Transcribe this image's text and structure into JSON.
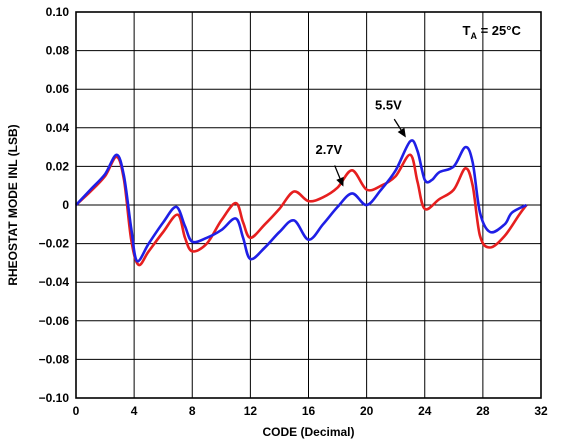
{
  "chart_data": {
    "type": "line",
    "xlabel": "CODE (Decimal)",
    "ylabel": "RHEOSTAT MODE INL (LSB)",
    "xlim": [
      0,
      32
    ],
    "ylim": [
      -0.1,
      0.1
    ],
    "x_ticks": [
      "0",
      "4",
      "8",
      "12",
      "16",
      "20",
      "24",
      "28",
      "32"
    ],
    "y_ticks": [
      "0.10",
      "0.08",
      "0.06",
      "0.04",
      "0.02",
      "0",
      "−0.02",
      "−0.04",
      "−0.06",
      "−0.08",
      "−0.10"
    ],
    "grid": true,
    "annotation": {
      "prefix": "T",
      "subscript": "A",
      "suffix": " = 25°C"
    },
    "series": [
      {
        "name": "5.5V",
        "color": "#1f1fe6",
        "x": [
          0,
          1,
          2,
          2.8,
          3.3,
          3.8,
          4.2,
          5,
          6,
          6.9,
          7.5,
          8,
          9,
          10,
          11,
          11.5,
          12,
          13,
          14,
          15,
          16,
          17,
          18,
          19,
          20,
          21,
          22,
          23,
          23.5,
          24,
          24.5,
          25,
          26,
          26.8,
          27.3,
          27.8,
          28.5,
          29.5,
          30,
          31
        ],
        "y": [
          0.0,
          0.008,
          0.016,
          0.026,
          0.015,
          -0.012,
          -0.029,
          -0.02,
          -0.009,
          -0.001,
          -0.011,
          -0.019,
          -0.017,
          -0.013,
          -0.007,
          -0.017,
          -0.028,
          -0.022,
          -0.014,
          -0.008,
          -0.018,
          -0.01,
          -0.001,
          0.006,
          0.0,
          0.008,
          0.018,
          0.033,
          0.028,
          0.013,
          0.013,
          0.017,
          0.02,
          0.03,
          0.022,
          -0.004,
          -0.014,
          -0.01,
          -0.004,
          0.0
        ]
      },
      {
        "name": "2.7V",
        "color": "#e61f1f",
        "x": [
          0,
          1,
          2,
          2.8,
          3.3,
          3.8,
          4.3,
          5,
          6,
          7,
          7.5,
          8,
          9,
          10,
          11,
          11.5,
          12,
          13,
          14,
          15,
          16,
          17,
          18,
          19,
          20,
          21,
          22,
          23,
          23.5,
          24,
          25,
          26,
          26.8,
          27.3,
          27.8,
          28.5,
          29.5,
          30.5,
          31
        ],
        "y": [
          0.0,
          0.007,
          0.015,
          0.025,
          0.013,
          -0.018,
          -0.031,
          -0.024,
          -0.014,
          -0.005,
          -0.017,
          -0.024,
          -0.02,
          -0.008,
          0.001,
          -0.009,
          -0.017,
          -0.01,
          -0.002,
          0.007,
          0.002,
          0.004,
          0.009,
          0.018,
          0.008,
          0.01,
          0.015,
          0.026,
          0.012,
          -0.002,
          0.003,
          0.008,
          0.019,
          0.01,
          -0.016,
          -0.022,
          -0.016,
          -0.005,
          0.0
        ]
      }
    ],
    "labels": [
      {
        "text": "5.5V",
        "series": "5.5V"
      },
      {
        "text": "2.7V",
        "series": "2.7V"
      }
    ]
  }
}
